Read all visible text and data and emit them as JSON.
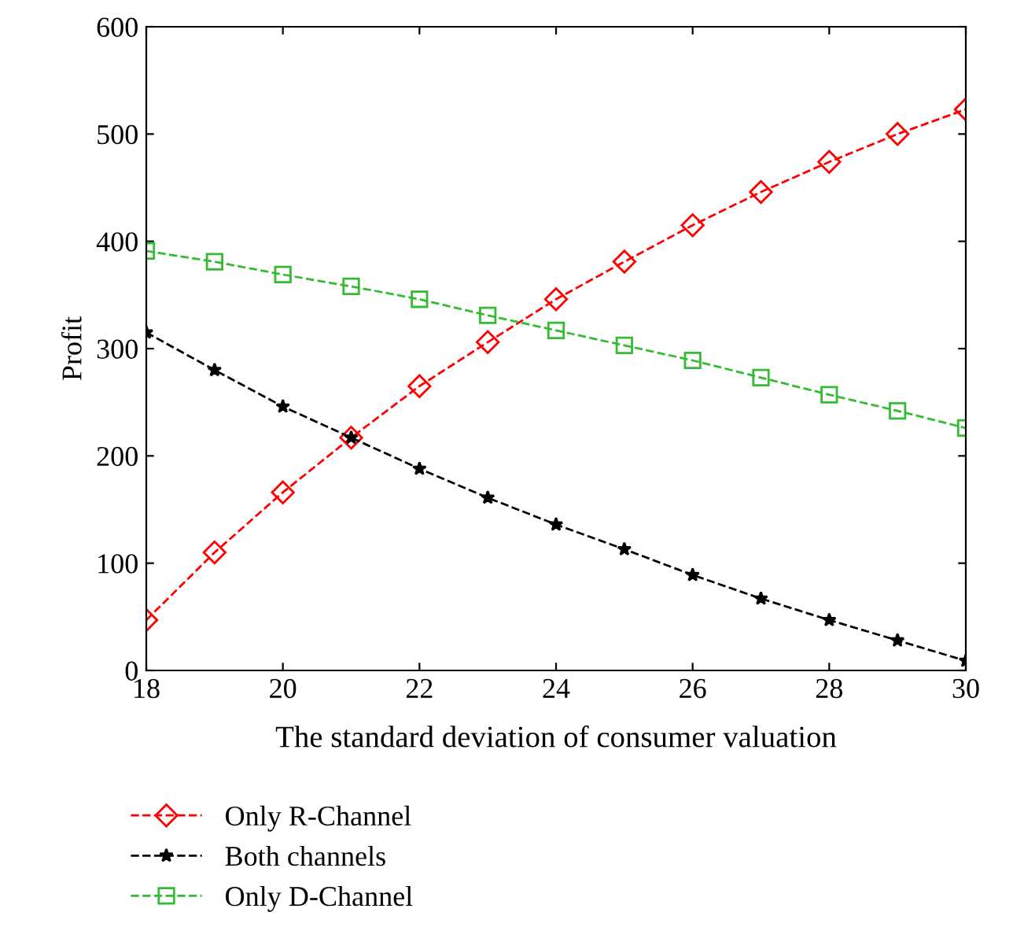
{
  "chart_data": {
    "type": "line",
    "xlabel": "The standard deviation of consumer valuation",
    "ylabel": "Profit",
    "x": [
      18,
      19,
      20,
      21,
      22,
      23,
      24,
      25,
      26,
      27,
      28,
      29,
      30
    ],
    "series": [
      {
        "name": "Only R-Channel",
        "color": "#ff0000",
        "marker": "diamond",
        "values": [
          47,
          110,
          166,
          217,
          265,
          306,
          346,
          381,
          415,
          446,
          474,
          500,
          523
        ]
      },
      {
        "name": "Both channels",
        "color": "#000000",
        "marker": "star",
        "values": [
          315,
          280,
          246,
          217,
          188,
          161,
          136,
          113,
          89,
          67,
          47,
          28,
          9
        ]
      },
      {
        "name": "Only D-Channel",
        "color": "#33bb33",
        "marker": "square",
        "values": [
          391,
          381,
          369,
          358,
          346,
          331,
          317,
          303,
          289,
          273,
          257,
          242,
          226
        ]
      }
    ],
    "xlim": [
      18,
      30
    ],
    "ylim": [
      0,
      600
    ],
    "xticks": [
      18,
      20,
      22,
      24,
      26,
      28,
      30
    ],
    "yticks": [
      0,
      100,
      200,
      300,
      400,
      500,
      600
    ],
    "line_style": "dashed",
    "legend": "bottom",
    "grid": false
  }
}
